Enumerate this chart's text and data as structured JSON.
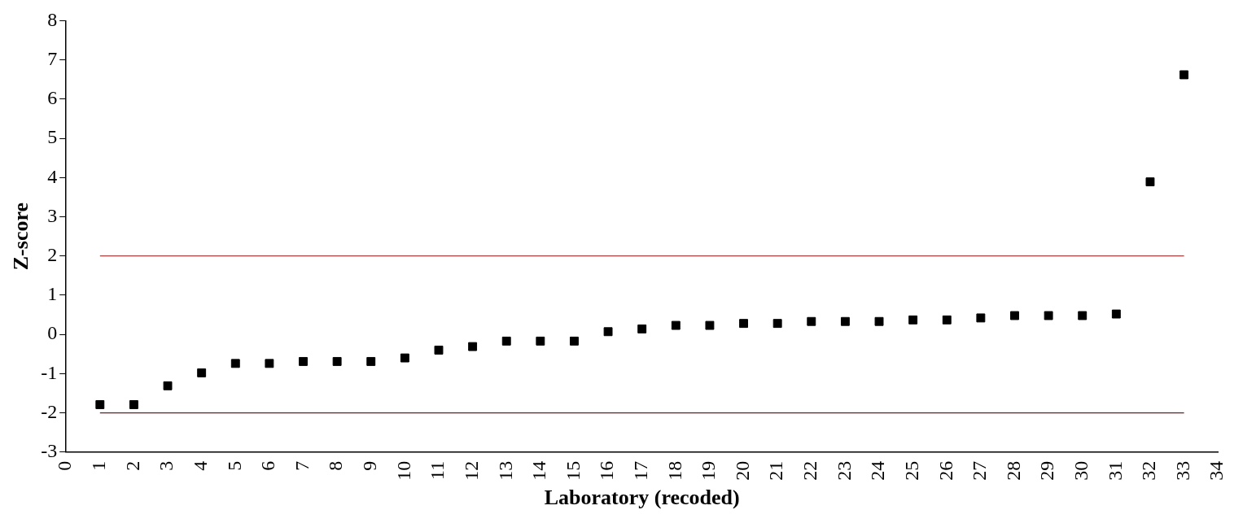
{
  "chart_data": {
    "type": "scatter",
    "xlabel": "Laboratory (recoded)",
    "ylabel": "Z-score",
    "x": [
      1,
      2,
      3,
      4,
      5,
      6,
      7,
      8,
      9,
      10,
      11,
      12,
      13,
      14,
      15,
      16,
      17,
      18,
      19,
      20,
      21,
      22,
      23,
      24,
      25,
      26,
      27,
      28,
      29,
      30,
      31,
      32,
      33
    ],
    "series": [
      {
        "color": "#000000",
        "values": [
          -1.79,
          -1.79,
          -1.31,
          -0.98,
          -0.74,
          -0.74,
          -0.69,
          -0.69,
          -0.69,
          -0.6,
          -0.4,
          -0.31,
          -0.17,
          -0.17,
          -0.17,
          0.07,
          0.14,
          0.23,
          0.23,
          0.28,
          0.28,
          0.33,
          0.33,
          0.33,
          0.37,
          0.37,
          0.42,
          0.48,
          0.48,
          0.48,
          0.52,
          3.89,
          6.62
        ]
      }
    ],
    "marker": "square",
    "xlim": [
      0,
      34
    ],
    "xticks": [
      0,
      1,
      2,
      3,
      4,
      5,
      6,
      7,
      8,
      9,
      10,
      11,
      12,
      13,
      14,
      15,
      16,
      17,
      18,
      19,
      20,
      21,
      22,
      23,
      24,
      25,
      26,
      27,
      28,
      29,
      30,
      31,
      32,
      33,
      34
    ],
    "ylim": [
      -3,
      8
    ],
    "yticks": [
      -3,
      -2,
      -1,
      0,
      1,
      2,
      3,
      4,
      5,
      6,
      7,
      8
    ],
    "ref_lines": [
      {
        "axis": "y",
        "value": 2,
        "color": "#a84040"
      },
      {
        "axis": "y",
        "value": -2,
        "color": "#801818"
      }
    ],
    "grid": false,
    "legend": false
  }
}
